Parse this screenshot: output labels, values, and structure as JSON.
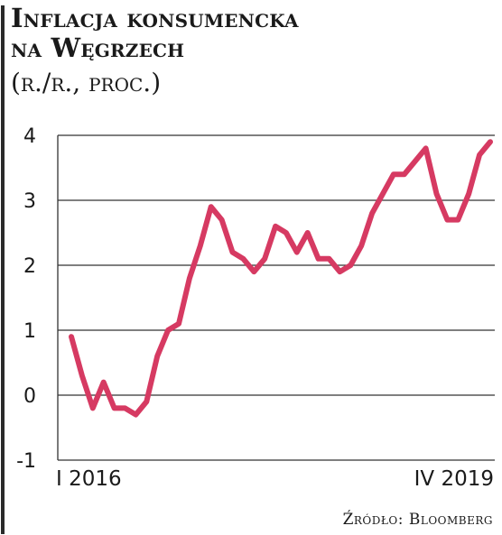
{
  "header": {
    "title_line1": "Inflacja konsumencka",
    "title_line2": "na Węgrzech",
    "subtitle": "(r./r., proc.)"
  },
  "chart_data": {
    "type": "line",
    "series": [
      {
        "color": "#d63a62",
        "values": [
          0.9,
          0.3,
          -0.2,
          0.2,
          -0.2,
          -0.2,
          -0.3,
          -0.1,
          0.6,
          1.0,
          1.1,
          1.8,
          2.3,
          2.9,
          2.7,
          2.2,
          2.1,
          1.9,
          2.1,
          2.6,
          2.5,
          2.2,
          2.5,
          2.1,
          2.1,
          1.9,
          2.0,
          2.3,
          2.8,
          3.1,
          3.4,
          3.4,
          3.6,
          3.8,
          3.1,
          2.7,
          2.7,
          3.1,
          3.7,
          3.9
        ]
      }
    ],
    "x_labels": {
      "start": "I 2016",
      "end": "IV 2019"
    },
    "yticks": [
      4,
      3,
      2,
      1,
      0,
      -1
    ],
    "ylim": [
      -1,
      4
    ],
    "grid": true,
    "legend": false
  },
  "source": "Źródło: Bloomberg"
}
